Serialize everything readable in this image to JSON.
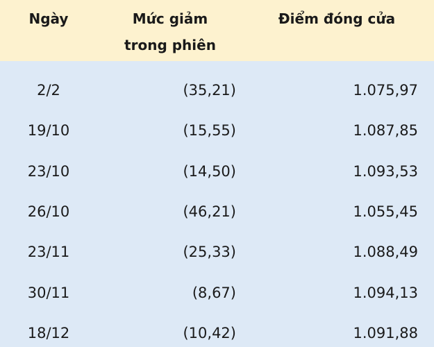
{
  "table": {
    "headers": [
      "Ngày",
      "Mức giảm trong phiên",
      "Điểm đóng cửa"
    ],
    "rows": [
      [
        "2/2",
        "(35,21)",
        "1.075,97"
      ],
      [
        "19/10",
        "(15,55)",
        "1.087,85"
      ],
      [
        "23/10",
        "(14,50)",
        "1.093,53"
      ],
      [
        "26/10",
        "(46,21)",
        "1.055,45"
      ],
      [
        "23/11",
        "(25,33)",
        "1.088,49"
      ],
      [
        "30/11",
        "(8,67)",
        "1.094,13"
      ],
      [
        "18/12",
        "(10,42)",
        "1.091,88"
      ]
    ]
  }
}
